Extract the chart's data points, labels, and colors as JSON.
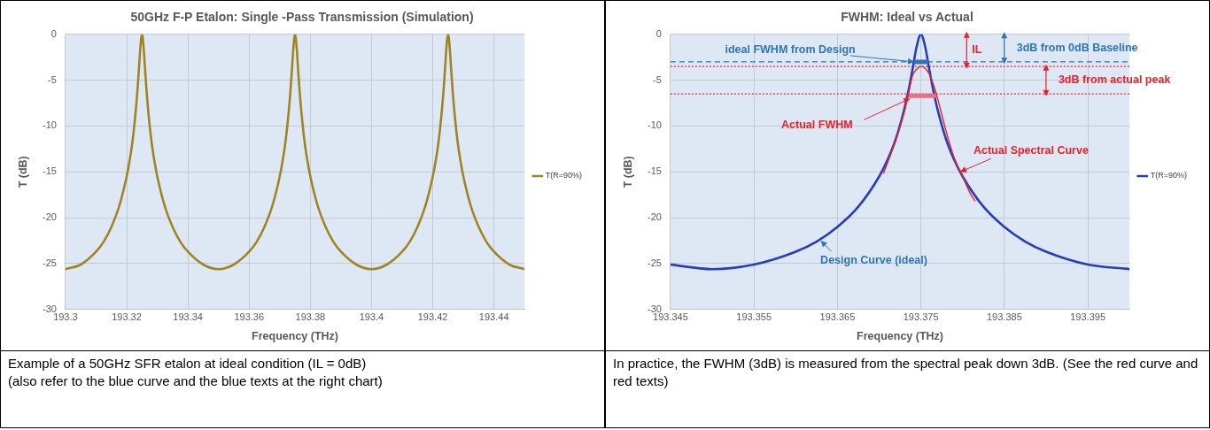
{
  "chart_data": [
    {
      "type": "line",
      "title": "50GHz F-P Etalon: Single -Pass Transmission (Simulation)",
      "xlabel": "Frequency (THz)",
      "ylabel": "T (dB)",
      "xlim": [
        193.3,
        193.45
      ],
      "xticks": [
        193.3,
        193.32,
        193.34,
        193.36,
        193.38,
        193.4,
        193.42,
        193.44
      ],
      "ylim": [
        -30,
        0
      ],
      "yticks": [
        -30,
        -25,
        -20,
        -15,
        -10,
        -5,
        0
      ],
      "grid": true,
      "legend": "right",
      "series": [
        {
          "name": "T(R=90%)",
          "color": "#a08424",
          "x": [
            193.3,
            193.305,
            193.31,
            193.3125,
            193.315,
            193.3175,
            193.32,
            193.321,
            193.322,
            193.323,
            193.3235,
            193.324,
            193.3245,
            193.325,
            193.3255,
            193.326,
            193.3265,
            193.327,
            193.328,
            193.329,
            193.33,
            193.3325,
            193.335,
            193.3375,
            193.34,
            193.345,
            193.35,
            193.355,
            193.36,
            193.3625,
            193.365,
            193.3675,
            193.37,
            193.371,
            193.372,
            193.373,
            193.3735,
            193.374,
            193.3745,
            193.375,
            193.3755,
            193.376,
            193.3765,
            193.377,
            193.378,
            193.379,
            193.38,
            193.3825,
            193.385,
            193.3875,
            193.39,
            193.395,
            193.4,
            193.405,
            193.41,
            193.4125,
            193.415,
            193.4175,
            193.42,
            193.421,
            193.422,
            193.423,
            193.4235,
            193.424,
            193.4245,
            193.425,
            193.4255,
            193.426,
            193.4265,
            193.427,
            193.428,
            193.429,
            193.43,
            193.4325,
            193.435,
            193.4375,
            193.44,
            193.445,
            193.45
          ],
          "values": [
            -25.6,
            -25.1,
            -23.7,
            -22.6,
            -21.0,
            -18.8,
            -15.5,
            -13.7,
            -11.4,
            -8.2,
            -6.2,
            -3.8,
            -1.3,
            0,
            -1.3,
            -3.8,
            -6.2,
            -8.2,
            -11.4,
            -13.7,
            -15.5,
            -18.8,
            -21.0,
            -22.6,
            -23.7,
            -25.1,
            -25.6,
            -25.1,
            -23.7,
            -22.6,
            -21.0,
            -18.8,
            -15.5,
            -13.7,
            -11.4,
            -8.2,
            -6.2,
            -3.8,
            -1.3,
            0,
            -1.3,
            -3.8,
            -6.2,
            -8.2,
            -11.4,
            -13.7,
            -15.5,
            -18.8,
            -21.0,
            -22.6,
            -23.7,
            -25.1,
            -25.6,
            -25.1,
            -23.7,
            -22.6,
            -21.0,
            -18.8,
            -15.5,
            -13.7,
            -11.4,
            -8.2,
            -6.2,
            -3.8,
            -1.3,
            0,
            -1.3,
            -3.8,
            -6.2,
            -8.2,
            -11.4,
            -13.7,
            -15.5,
            -18.8,
            -21.0,
            -22.6,
            -23.7,
            -25.1,
            -25.6
          ]
        }
      ],
      "annotations": [
        "Example of a 50GHz SFR etalon at ideal condition (IL = 0dB)",
        "(also refer to the blue curve and the blue texts at the right chart)"
      ]
    },
    {
      "type": "line",
      "title": "FWHM: Ideal vs Actual",
      "xlabel": "Frequency (THz)",
      "ylabel": "T (dB)",
      "xlim": [
        193.345,
        193.4
      ],
      "xticks": [
        193.345,
        193.355,
        193.365,
        193.375,
        193.385,
        193.395
      ],
      "ylim": [
        -30,
        0
      ],
      "yticks": [
        -30,
        -25,
        -20,
        -15,
        -10,
        -5,
        0
      ],
      "grid": true,
      "legend": "right",
      "series": [
        {
          "name": "T(R=90%)",
          "color": "#2a3cb8",
          "x": [
            193.345,
            193.35,
            193.355,
            193.36,
            193.3625,
            193.365,
            193.3675,
            193.37,
            193.371,
            193.372,
            193.373,
            193.3735,
            193.374,
            193.3745,
            193.375,
            193.3755,
            193.376,
            193.3765,
            193.377,
            193.378,
            193.379,
            193.38,
            193.3825,
            193.385,
            193.3875,
            193.39,
            193.395,
            193.4
          ],
          "values": [
            -25.1,
            -25.6,
            -25.1,
            -23.7,
            -22.6,
            -21.0,
            -18.8,
            -15.5,
            -13.7,
            -11.4,
            -8.2,
            -6.2,
            -3.8,
            -1.3,
            0,
            -1.3,
            -3.8,
            -6.2,
            -8.2,
            -11.4,
            -13.7,
            -15.5,
            -18.8,
            -21.0,
            -22.6,
            -23.7,
            -25.1,
            -25.6
          ]
        },
        {
          "color": "#e8202a",
          "x": [
            193.3705,
            193.371,
            193.372,
            193.373,
            193.3735,
            193.374,
            193.3745,
            193.375,
            193.3755,
            193.376,
            193.3765,
            193.377,
            193.378,
            193.379,
            193.38,
            193.381,
            193.3815
          ],
          "values": [
            -15.2,
            -14.0,
            -11.5,
            -8.5,
            -6.5,
            -4.5,
            -3.8,
            -3.5,
            -3.7,
            -4.3,
            -5.5,
            -7.0,
            -10.5,
            -13.5,
            -15.5,
            -17.5,
            -18.2
          ]
        },
        {
          "color": "#2e75b6",
          "x": [
            193.3742,
            193.3759
          ],
          "values": [
            -3,
            -3
          ]
        },
        {
          "color": "#e87080",
          "x": [
            193.3735,
            193.3768
          ],
          "values": [
            -6.7,
            -6.7
          ]
        }
      ],
      "ref_lines": [
        {
          "axis": "y",
          "value": -3,
          "color": "#2e75b6",
          "line_style": "dashed"
        },
        {
          "axis": "y",
          "value": -3.5,
          "color": "#e8202a",
          "line_style": "dotted"
        },
        {
          "axis": "y",
          "value": -6.5,
          "color": "#e8202a",
          "line_style": "dotted"
        }
      ],
      "annotations": [
        "IL",
        "3dB from 0dB Baseline",
        "3dB from actual peak",
        {
          "text": "ideal FWHM from Design",
          "x": 193.3742,
          "y": -3
        },
        {
          "text": "Actual FWHM",
          "x": 193.3737,
          "y": -7
        },
        {
          "text": "Actual Spectral Curve",
          "x": 193.3797,
          "y": -15
        },
        {
          "text": "Design Curve (ideal)",
          "x": 193.363,
          "y": -22.5
        },
        "In practice, the FWHM (3dB) is measured from the spectral peak down 3dB. (See the red curve and red texts)"
      ]
    }
  ]
}
